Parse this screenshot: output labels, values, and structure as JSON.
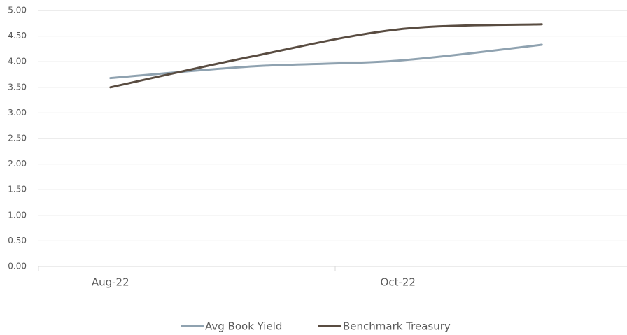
{
  "chart_data": {
    "type": "line",
    "categories": [
      "Aug-22",
      null,
      "Oct-22",
      null
    ],
    "series": [
      {
        "name": "Avg Book Yield",
        "color": "#8fa2b0",
        "values": [
          3.68,
          3.91,
          4.02,
          4.33
        ]
      },
      {
        "name": "Benchmark Treasury",
        "color": "#594c41",
        "values": [
          3.5,
          4.11,
          4.63,
          4.73
        ]
      }
    ],
    "ylim": [
      0,
      5
    ],
    "yticks": [
      {
        "value": 0,
        "label": "0.00"
      },
      {
        "value": 0.5,
        "label": "0.50"
      },
      {
        "value": 1,
        "label": "1.00"
      },
      {
        "value": 1.5,
        "label": "1.50"
      },
      {
        "value": 2,
        "label": "2.00"
      },
      {
        "value": 2.5,
        "label": "2.50"
      },
      {
        "value": 3,
        "label": "3.00"
      },
      {
        "value": 3.5,
        "label": "3.50"
      },
      {
        "value": 4,
        "label": "4.00"
      },
      {
        "value": 4.5,
        "label": "4.50"
      },
      {
        "value": 5,
        "label": "5.00"
      }
    ],
    "grid": true,
    "smooth": true,
    "legend": "bottom"
  }
}
